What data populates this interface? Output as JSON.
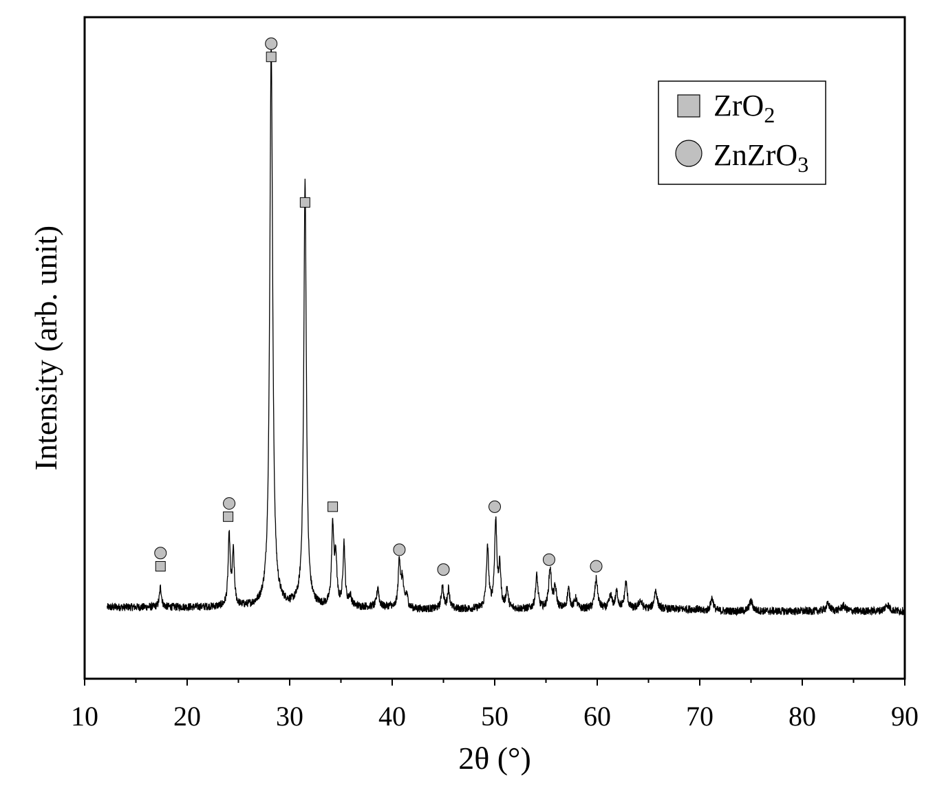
{
  "chart_data": {
    "type": "line",
    "title": "",
    "xlabel": "2θ (°)",
    "ylabel": "Intensity (arb. unit)",
    "xlim": [
      10,
      90
    ],
    "ylim": [
      0,
      100
    ],
    "x_ticks": [
      "10",
      "20",
      "30",
      "40",
      "50",
      "60",
      "70",
      "80",
      "90"
    ],
    "y_ticks_shown": false,
    "grid": false,
    "legend_position": "top-right",
    "legend": [
      {
        "label_main": "ZrO",
        "label_sub": "2",
        "marker": "square"
      },
      {
        "label_main": "ZnZrO",
        "label_sub": "3",
        "marker": "circle"
      }
    ],
    "marker_color": "#c0c0c0",
    "line_color": "#000000",
    "baseline": 10.5,
    "noise_amplitude": 0.6,
    "peaks": [
      {
        "x": 17.4,
        "height": 3.0,
        "width": 0.12
      },
      {
        "x": 24.1,
        "height": 10.5,
        "width": 0.12
      },
      {
        "x": 24.5,
        "height": 8.0,
        "width": 0.12
      },
      {
        "x": 28.2,
        "height": 85.0,
        "width": 0.17
      },
      {
        "x": 31.5,
        "height": 64.0,
        "width": 0.15
      },
      {
        "x": 34.2,
        "height": 12.0,
        "width": 0.13
      },
      {
        "x": 34.5,
        "height": 7.0,
        "width": 0.12
      },
      {
        "x": 35.3,
        "height": 9.5,
        "width": 0.12
      },
      {
        "x": 35.9,
        "height": 1.5,
        "width": 0.15
      },
      {
        "x": 38.6,
        "height": 3.0,
        "width": 0.12
      },
      {
        "x": 40.7,
        "height": 7.5,
        "width": 0.13
      },
      {
        "x": 41.0,
        "height": 4.0,
        "width": 0.12
      },
      {
        "x": 41.4,
        "height": 2.0,
        "width": 0.15
      },
      {
        "x": 44.9,
        "height": 3.5,
        "width": 0.13
      },
      {
        "x": 45.5,
        "height": 3.0,
        "width": 0.13
      },
      {
        "x": 49.3,
        "height": 9.0,
        "width": 0.14
      },
      {
        "x": 50.1,
        "height": 13.0,
        "width": 0.14
      },
      {
        "x": 50.5,
        "height": 6.0,
        "width": 0.12
      },
      {
        "x": 51.2,
        "height": 3.0,
        "width": 0.12
      },
      {
        "x": 54.1,
        "height": 5.0,
        "width": 0.14
      },
      {
        "x": 55.4,
        "height": 6.0,
        "width": 0.16
      },
      {
        "x": 55.9,
        "height": 3.0,
        "width": 0.15
      },
      {
        "x": 57.2,
        "height": 3.0,
        "width": 0.14
      },
      {
        "x": 57.9,
        "height": 1.5,
        "width": 0.15
      },
      {
        "x": 59.9,
        "height": 4.5,
        "width": 0.17
      },
      {
        "x": 61.3,
        "height": 2.0,
        "width": 0.15
      },
      {
        "x": 61.9,
        "height": 2.5,
        "width": 0.15
      },
      {
        "x": 62.8,
        "height": 4.0,
        "width": 0.15
      },
      {
        "x": 64.2,
        "height": 1.2,
        "width": 0.2
      },
      {
        "x": 65.7,
        "height": 2.8,
        "width": 0.17
      },
      {
        "x": 71.2,
        "height": 2.0,
        "width": 0.17
      },
      {
        "x": 75.0,
        "height": 1.5,
        "width": 0.2
      },
      {
        "x": 82.5,
        "height": 1.0,
        "width": 0.25
      },
      {
        "x": 84.0,
        "height": 0.8,
        "width": 0.25
      },
      {
        "x": 88.3,
        "height": 1.0,
        "width": 0.25
      }
    ],
    "phase_markers": [
      {
        "x": 17.4,
        "y": 17.0,
        "marker": "square"
      },
      {
        "x": 17.4,
        "y": 19.0,
        "marker": "circle"
      },
      {
        "x": 24.0,
        "y": 24.5,
        "marker": "square"
      },
      {
        "x": 24.1,
        "y": 26.5,
        "marker": "circle"
      },
      {
        "x": 28.2,
        "y": 94.0,
        "marker": "square"
      },
      {
        "x": 28.2,
        "y": 96.0,
        "marker": "circle"
      },
      {
        "x": 31.5,
        "y": 72.0,
        "marker": "square"
      },
      {
        "x": 34.2,
        "y": 26.0,
        "marker": "square"
      },
      {
        "x": 40.7,
        "y": 19.5,
        "marker": "circle"
      },
      {
        "x": 45.0,
        "y": 16.5,
        "marker": "circle"
      },
      {
        "x": 50.0,
        "y": 26.0,
        "marker": "circle"
      },
      {
        "x": 55.3,
        "y": 18.0,
        "marker": "circle"
      },
      {
        "x": 59.9,
        "y": 17.0,
        "marker": "circle"
      }
    ]
  }
}
